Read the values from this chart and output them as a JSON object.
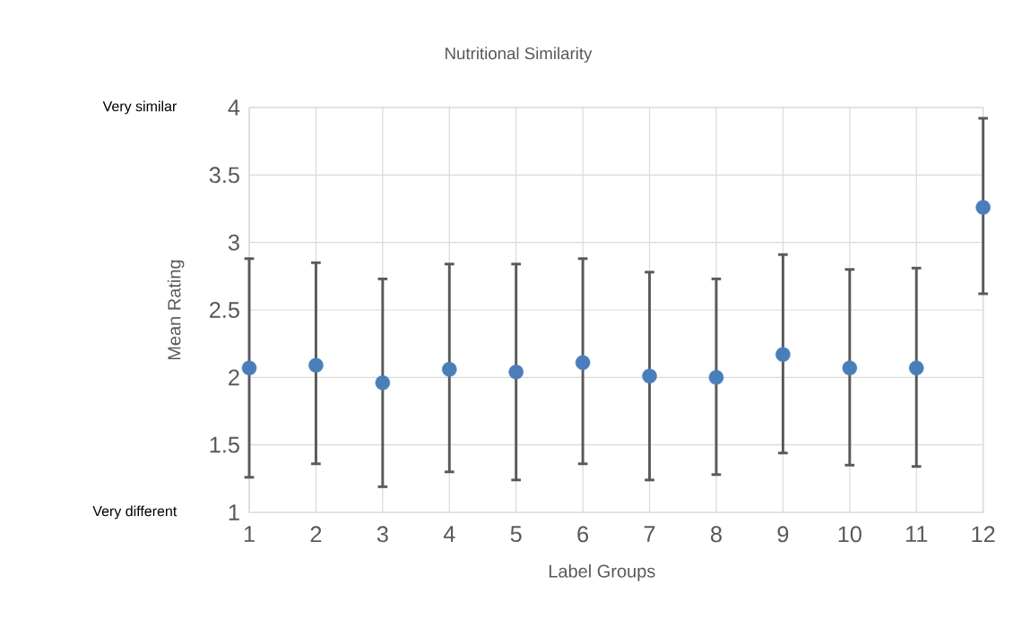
{
  "chart_data": {
    "type": "scatter",
    "title": "Nutritional Similarity",
    "xlabel": "Label Groups",
    "ylabel": "Mean Rating",
    "annotations": [
      "Very similar",
      "Very different"
    ],
    "x": [
      1,
      2,
      3,
      4,
      5,
      6,
      7,
      8,
      9,
      10,
      11,
      12
    ],
    "values": [
      2.07,
      2.09,
      1.96,
      2.06,
      2.04,
      2.11,
      2.01,
      2.0,
      2.17,
      2.07,
      2.07,
      3.26
    ],
    "errors": [
      [
        1.26,
        2.88
      ],
      [
        1.36,
        2.85
      ],
      [
        1.19,
        2.73
      ],
      [
        1.3,
        2.84
      ],
      [
        1.24,
        2.84
      ],
      [
        1.36,
        2.88
      ],
      [
        1.24,
        2.78
      ],
      [
        1.28,
        2.73
      ],
      [
        1.44,
        2.91
      ],
      [
        1.35,
        2.8
      ],
      [
        1.34,
        2.81
      ],
      [
        2.62,
        3.92
      ]
    ],
    "color": "#4a7ebb",
    "xlim": [
      1,
      12
    ],
    "xticks": [
      1,
      2,
      3,
      4,
      5,
      6,
      7,
      8,
      9,
      10,
      11,
      12
    ],
    "ylim": [
      1,
      4
    ],
    "yticks": [
      1,
      1.5,
      2,
      2.5,
      3,
      3.5,
      4
    ],
    "grid": true,
    "legend": false,
    "marker": "circle"
  }
}
